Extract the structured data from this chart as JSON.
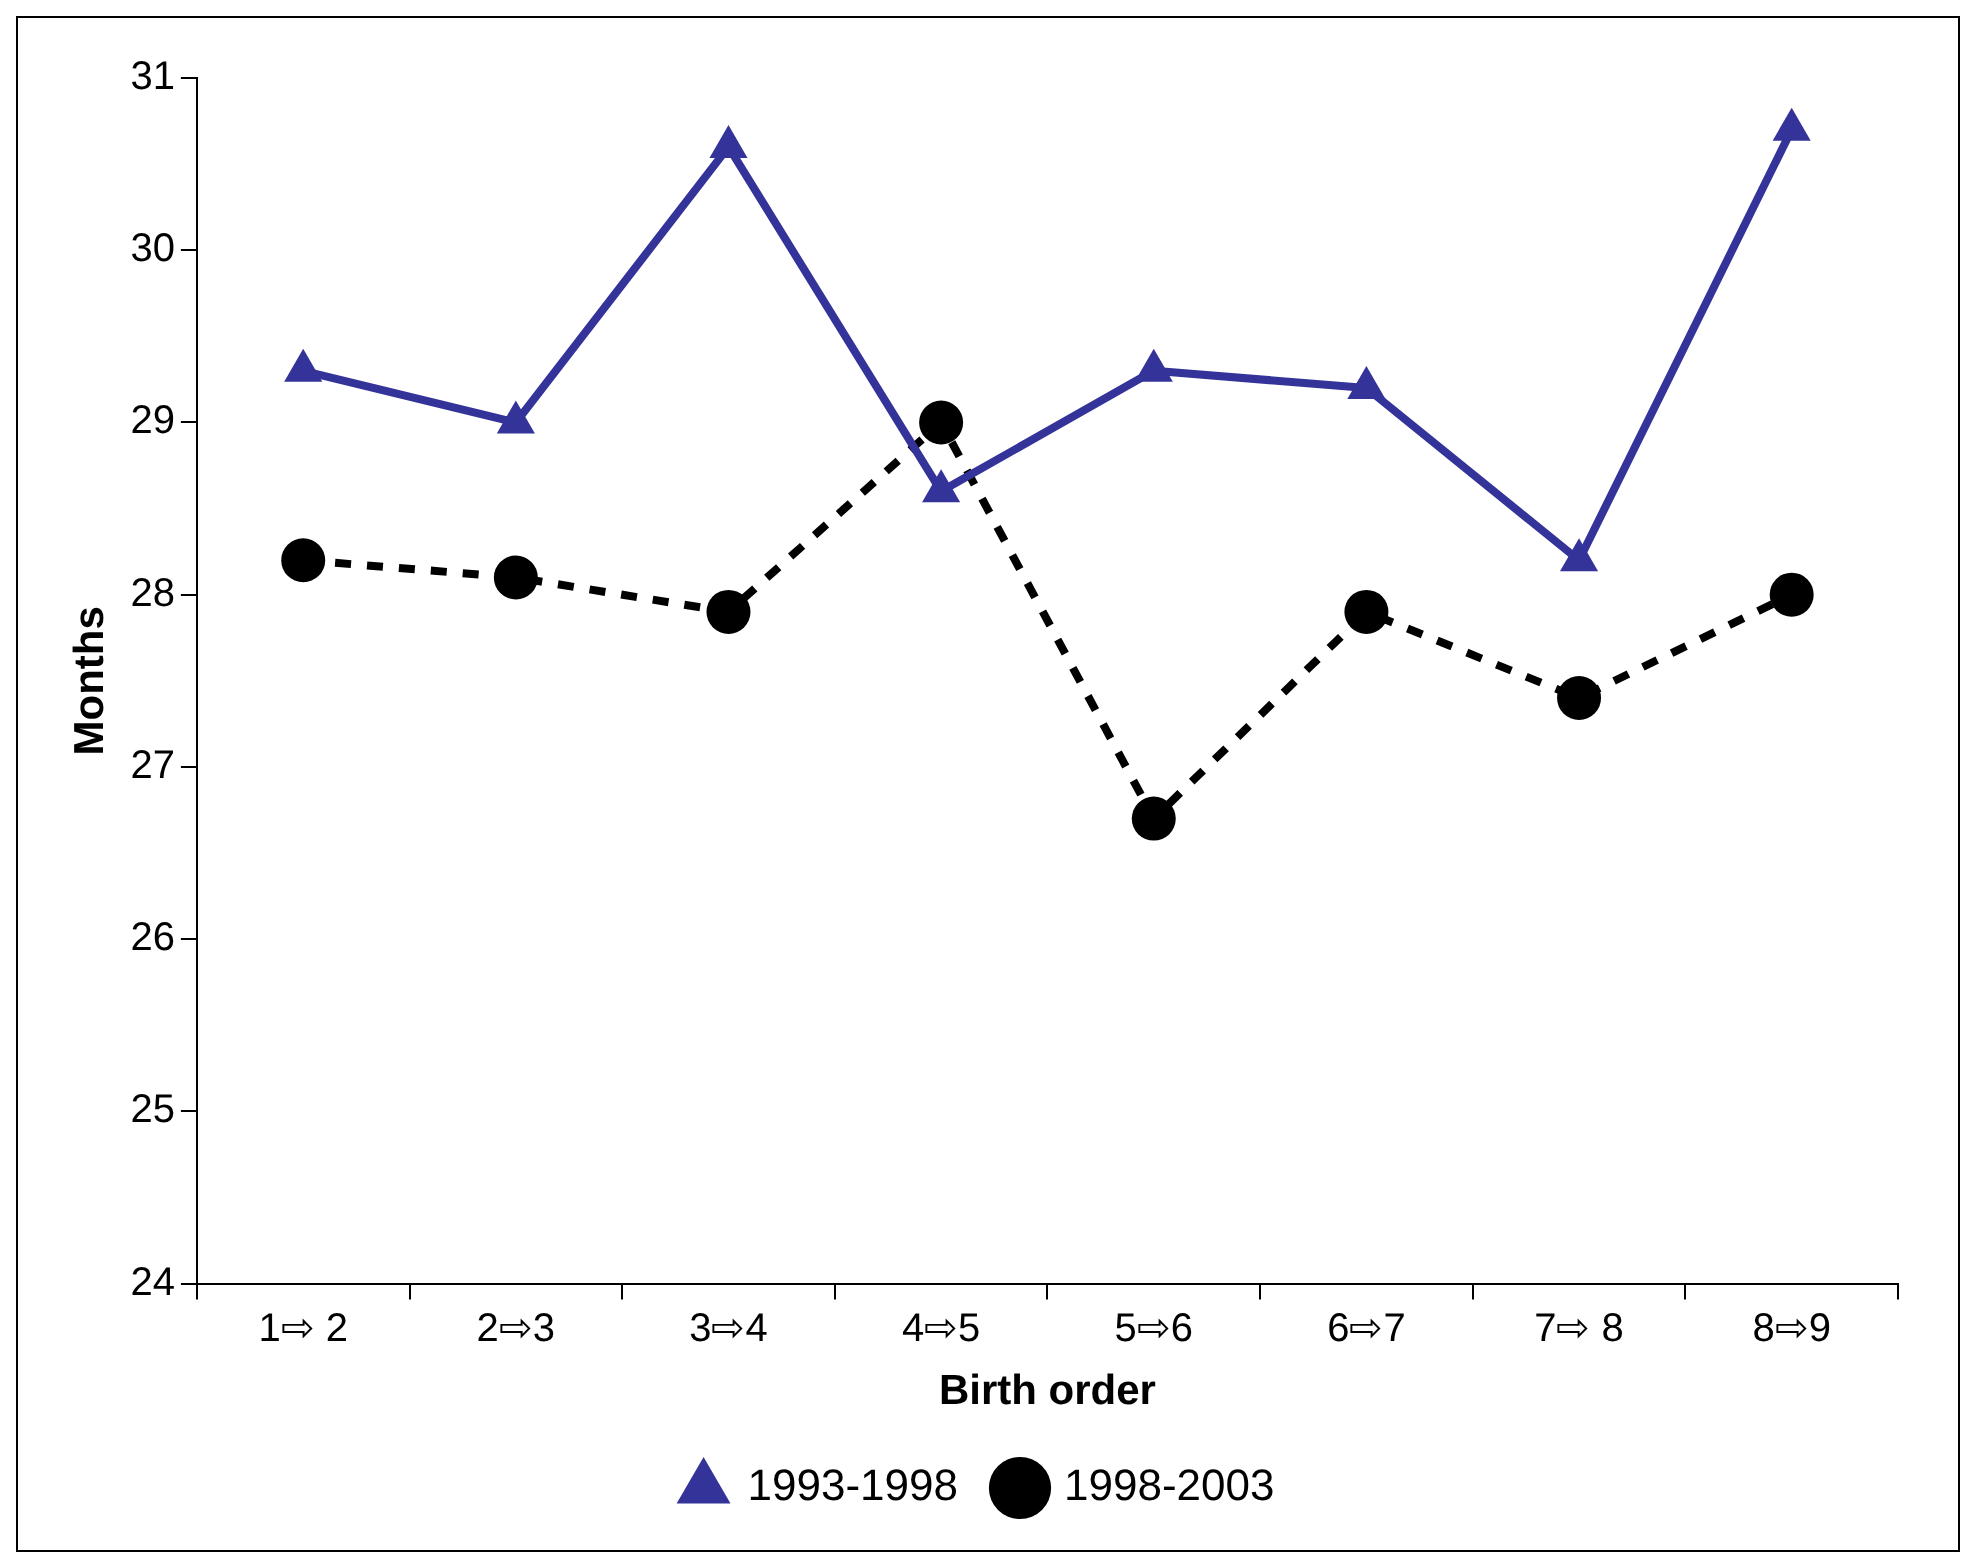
{
  "chart_data": {
    "type": "line",
    "xlabel": "Birth order",
    "ylabel": "Months",
    "categories": [
      "1⇨ 2",
      "2⇨3",
      "3⇨4",
      "4⇨5",
      "5⇨6",
      "6⇨7",
      "7⇨ 8",
      "8⇨9"
    ],
    "series": [
      {
        "name": "1993-1998",
        "color": "#333399",
        "marker": "triangle",
        "line_style": "solid",
        "values": [
          29.3,
          29.0,
          30.6,
          28.6,
          29.3,
          29.2,
          28.2,
          30.7
        ]
      },
      {
        "name": "1998-2003",
        "color": "#000000",
        "marker": "circle",
        "line_style": "dashed",
        "values": [
          28.2,
          28.1,
          27.9,
          29.0,
          26.7,
          27.9,
          27.4,
          28.0
        ]
      }
    ],
    "ylim": [
      24,
      31
    ],
    "yticks": [
      24,
      25,
      26,
      27,
      28,
      29,
      30,
      31
    ],
    "grid": false,
    "legend": "bottom"
  }
}
